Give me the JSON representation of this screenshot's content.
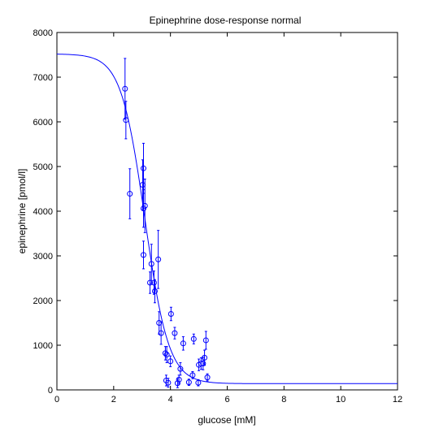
{
  "chart_data": {
    "type": "scatter",
    "title": "Epinephrine dose-response normal",
    "xlabel": "glucose [mM]",
    "ylabel": "epinephrine [pmol/l]",
    "xlim": [
      0,
      12
    ],
    "ylim": [
      0,
      8000
    ],
    "xticks": [
      0,
      2,
      4,
      6,
      8,
      10,
      12
    ],
    "yticks": [
      0,
      1000,
      2000,
      3000,
      4000,
      5000,
      6000,
      7000,
      8000
    ],
    "grid": false,
    "legend": "none",
    "colors": {
      "data": "#0000ff",
      "axes": "#000000",
      "background": "#ffffff"
    },
    "series": [
      {
        "kind": "points-with-error-bars",
        "marker": "circle",
        "points": [
          {
            "x": 2.4,
            "y": 6740,
            "err": 680
          },
          {
            "x": 2.43,
            "y": 6040,
            "err": 420
          },
          {
            "x": 2.57,
            "y": 4390,
            "err": 560
          },
          {
            "x": 3.02,
            "y": 4590,
            "err": 560
          },
          {
            "x": 3.05,
            "y": 4960,
            "err": 560
          },
          {
            "x": 3.05,
            "y": 4060,
            "err": 420
          },
          {
            "x": 3.1,
            "y": 4120,
            "err": 600
          },
          {
            "x": 3.05,
            "y": 3020,
            "err": 310
          },
          {
            "x": 3.28,
            "y": 2400,
            "err": 240
          },
          {
            "x": 3.33,
            "y": 2820,
            "err": 440
          },
          {
            "x": 3.42,
            "y": 2400,
            "err": 260
          },
          {
            "x": 3.45,
            "y": 2210,
            "err": 260
          },
          {
            "x": 3.57,
            "y": 2920,
            "err": 650
          },
          {
            "x": 3.6,
            "y": 1500,
            "err": 250
          },
          {
            "x": 3.67,
            "y": 1270,
            "err": 250
          },
          {
            "x": 3.82,
            "y": 820,
            "err": 150
          },
          {
            "x": 3.85,
            "y": 210,
            "err": 120
          },
          {
            "x": 3.87,
            "y": 790,
            "err": 180
          },
          {
            "x": 3.92,
            "y": 160,
            "err": 100
          },
          {
            "x": 4.0,
            "y": 640,
            "err": 120
          },
          {
            "x": 4.02,
            "y": 1700,
            "err": 150
          },
          {
            "x": 4.15,
            "y": 1270,
            "err": 130
          },
          {
            "x": 4.25,
            "y": 150,
            "err": 100
          },
          {
            "x": 4.3,
            "y": 230,
            "err": 100
          },
          {
            "x": 4.35,
            "y": 470,
            "err": 140
          },
          {
            "x": 4.45,
            "y": 1040,
            "err": 150
          },
          {
            "x": 4.65,
            "y": 170,
            "err": 70
          },
          {
            "x": 4.78,
            "y": 330,
            "err": 80
          },
          {
            "x": 4.82,
            "y": 1140,
            "err": 110
          },
          {
            "x": 4.98,
            "y": 160,
            "err": 70
          },
          {
            "x": 5.0,
            "y": 560,
            "err": 130
          },
          {
            "x": 5.08,
            "y": 590,
            "err": 130
          },
          {
            "x": 5.15,
            "y": 590,
            "err": 140
          },
          {
            "x": 5.2,
            "y": 720,
            "err": 170
          },
          {
            "x": 5.25,
            "y": 1110,
            "err": 200
          },
          {
            "x": 5.3,
            "y": 280,
            "err": 80
          }
        ]
      },
      {
        "kind": "fitted-curve",
        "model": "sigmoid",
        "params": {
          "top": 7520,
          "bottom": 140,
          "x50": 3.1,
          "slope": 0.42
        }
      }
    ]
  }
}
